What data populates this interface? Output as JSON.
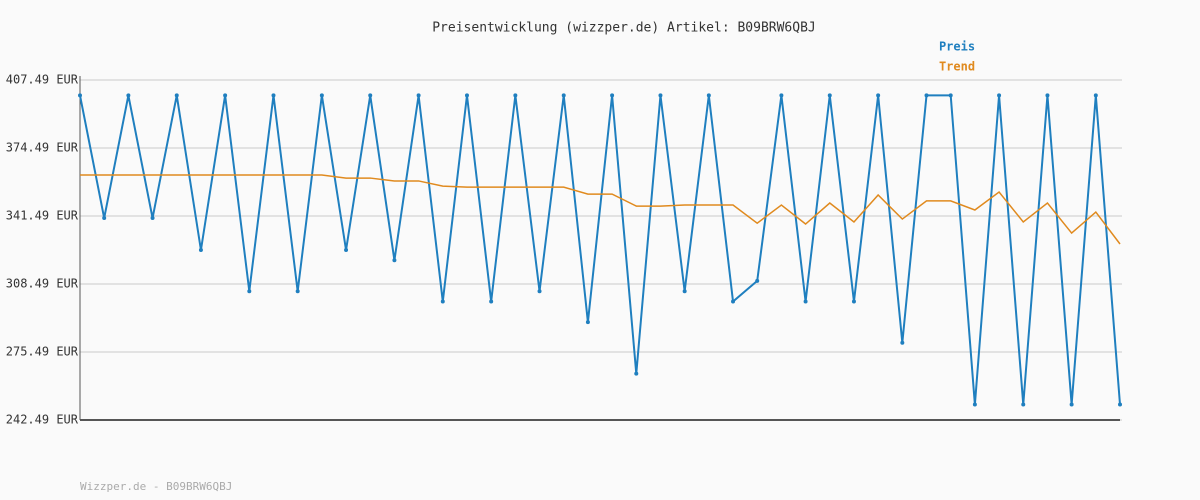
{
  "chart_data": {
    "type": "line",
    "title": "Preisentwicklung (wizzper.de) Artikel: B09BRW6QBJ",
    "footer": "Wizzper.de - B09BRW6QBJ",
    "categories": [
      null,
      null,
      null,
      null,
      null,
      null,
      null,
      null,
      null,
      null,
      null,
      null,
      null,
      null,
      null,
      null,
      null,
      null,
      null,
      null,
      null,
      null,
      null,
      null,
      null,
      null,
      null,
      null,
      null,
      null,
      null,
      null,
      null,
      null,
      null,
      null,
      null,
      null,
      null,
      null,
      null,
      null,
      null,
      null
    ],
    "series": [
      {
        "name": "Preis",
        "color": "#1f7fbf",
        "values": [
          400,
          340.5,
          400,
          340.5,
          400,
          325,
          400,
          305,
          400,
          305,
          400,
          325,
          400,
          320,
          400,
          300,
          400,
          300,
          400,
          305,
          400,
          290,
          400,
          265,
          400,
          305,
          400,
          300,
          310,
          400,
          300,
          400,
          300,
          400,
          280,
          400,
          400,
          250,
          400,
          250,
          400,
          250,
          400,
          250
        ]
      },
      {
        "name": "Trend",
        "color": "#e08a1e",
        "values": [
          361.4,
          361.4,
          361.4,
          361.4,
          361.4,
          361.4,
          361.4,
          361.4,
          361.4,
          361.4,
          361.4,
          359.9,
          359.9,
          358.5,
          358.5,
          356.0,
          355.5,
          355.5,
          355.5,
          355.5,
          355.5,
          352.1,
          352.1,
          346.3,
          346.3,
          346.8,
          346.8,
          346.8,
          338.0,
          346.8,
          337.6,
          347.8,
          338.6,
          351.7,
          340.0,
          348.8,
          348.8,
          344.4,
          353.1,
          338.6,
          347.8,
          333.2,
          343.4,
          327.9
        ]
      }
    ],
    "ylim": [
      242.49,
      407.49
    ],
    "yticks": [
      {
        "value": 242.49,
        "label": "242.49 EUR"
      },
      {
        "value": 275.49,
        "label": "275.49 EUR"
      },
      {
        "value": 308.49,
        "label": "308.49 EUR"
      },
      {
        "value": 341.49,
        "label": "341.49 EUR"
      },
      {
        "value": 374.49,
        "label": "374.49 EUR"
      },
      {
        "value": 407.49,
        "label": "407.49 EUR"
      }
    ],
    "grid": true
  }
}
